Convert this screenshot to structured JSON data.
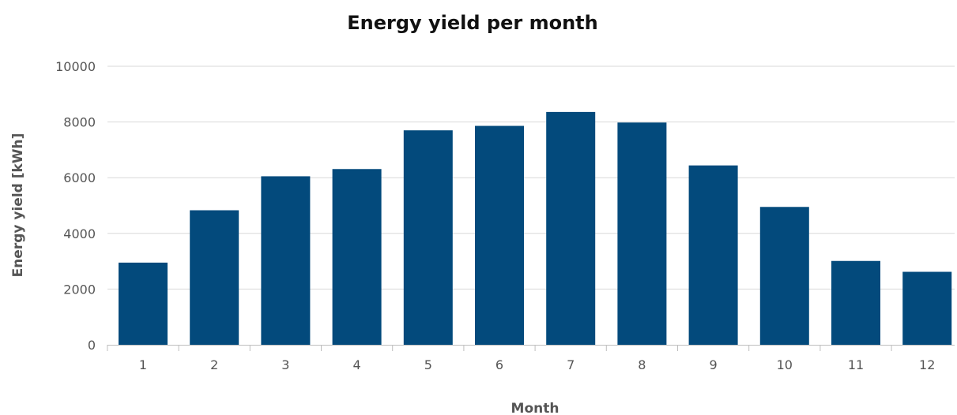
{
  "chart_data": {
    "type": "bar",
    "title": "Energy yield per month",
    "xlabel": "Month",
    "ylabel": "Energy yield [kWh]",
    "categories": [
      "1",
      "2",
      "3",
      "4",
      "5",
      "6",
      "7",
      "8",
      "9",
      "10",
      "11",
      "12"
    ],
    "values": [
      2950,
      4830,
      6050,
      6310,
      7700,
      7860,
      8360,
      7980,
      6440,
      4950,
      3010,
      2620
    ],
    "ylim": [
      0,
      10000
    ],
    "yticks": [
      "0",
      "2000",
      "4000",
      "6000",
      "8000",
      "10000"
    ],
    "grid": true,
    "legend": "none",
    "bar_color": "#034a7c"
  }
}
